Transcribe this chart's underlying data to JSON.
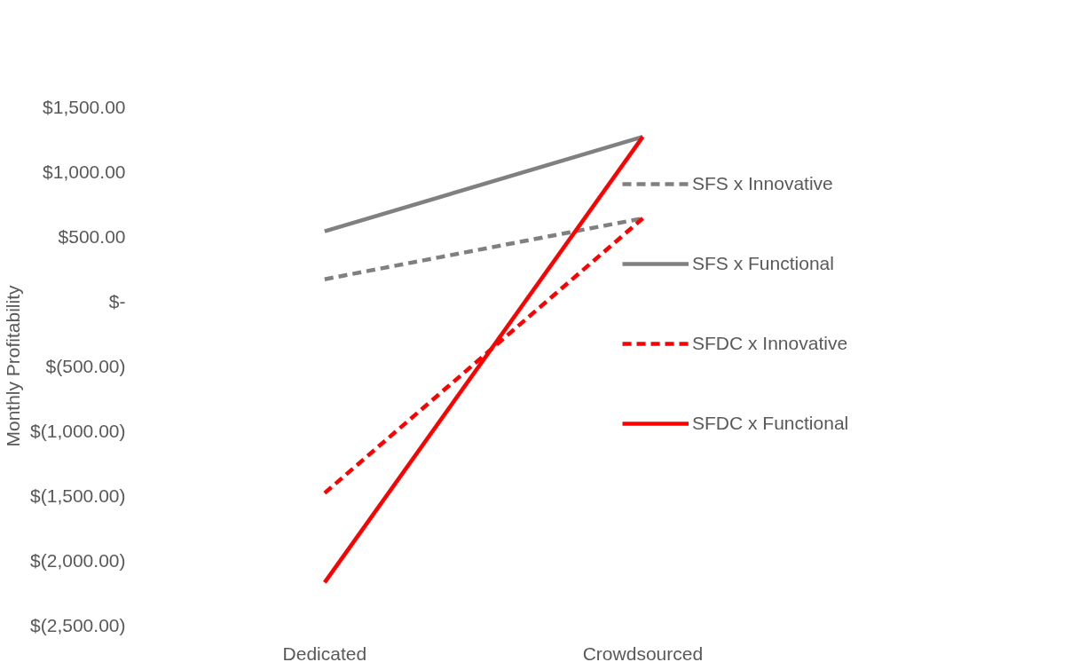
{
  "chart_data": {
    "type": "line",
    "ylabel": "Monthly Profitability",
    "categories": [
      "Dedicated",
      "Crowdsourced"
    ],
    "series": [
      {
        "name": "SFS x Innovative",
        "color": "#808080",
        "line_style": "dashed",
        "values": [
          170,
          640
        ]
      },
      {
        "name": "SFS x Functional",
        "color": "#808080",
        "line_style": "solid",
        "values": [
          540,
          1270
        ]
      },
      {
        "name": "SFDC x Innovative",
        "color": "#ff0000",
        "line_style": "dashed",
        "values": [
          -1480,
          640
        ]
      },
      {
        "name": "SFDC x Functional",
        "color": "#ff0000",
        "line_style": "solid",
        "values": [
          -2170,
          1270
        ]
      }
    ],
    "ylim": [
      -2500,
      1500
    ],
    "yticks": [
      {
        "value": -2500,
        "label": "$(2,500.00)"
      },
      {
        "value": -2000,
        "label": "$(2,000.00)"
      },
      {
        "value": -1500,
        "label": "$(1,500.00)"
      },
      {
        "value": -1000,
        "label": "$(1,000.00)"
      },
      {
        "value": -500,
        "label": "$(500.00)"
      },
      {
        "value": 0,
        "label": "$-"
      },
      {
        "value": 500,
        "label": "$500.00"
      },
      {
        "value": 1000,
        "label": "$1,000.00"
      },
      {
        "value": 1500,
        "label": "$1,500.00"
      }
    ],
    "grid": false,
    "legend": "right",
    "marker": "none"
  }
}
